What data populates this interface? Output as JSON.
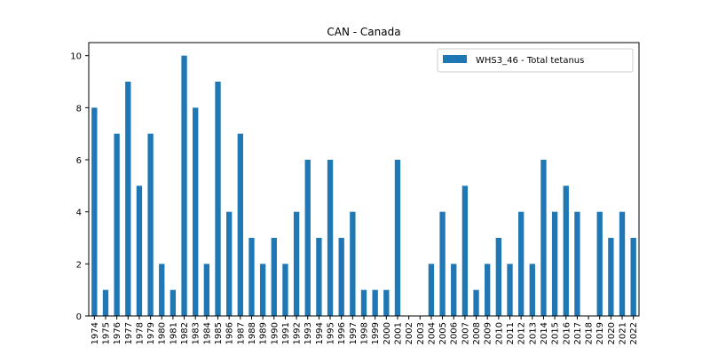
{
  "chart_data": {
    "type": "bar",
    "title": "CAN - Canada",
    "xlabel": "",
    "ylabel": "",
    "ylim": [
      0,
      10.5
    ],
    "yticks": [
      0,
      2,
      4,
      6,
      8,
      10
    ],
    "legend_position": "top-right",
    "grid": false,
    "categories": [
      "1974",
      "1975",
      "1976",
      "1977",
      "1978",
      "1979",
      "1980",
      "1981",
      "1982",
      "1983",
      "1984",
      "1985",
      "1986",
      "1987",
      "1988",
      "1989",
      "1990",
      "1991",
      "1992",
      "1993",
      "1994",
      "1995",
      "1996",
      "1997",
      "1998",
      "1999",
      "2000",
      "2001",
      "2002",
      "2003",
      "2004",
      "2005",
      "2006",
      "2007",
      "2008",
      "2009",
      "2010",
      "2011",
      "2012",
      "2013",
      "2014",
      "2015",
      "2016",
      "2017",
      "2018",
      "2019",
      "2020",
      "2021",
      "2022"
    ],
    "series": [
      {
        "name": "WHS3_46 - Total tetanus",
        "color": "#1f77b4",
        "values": [
          8,
          1,
          7,
          9,
          5,
          7,
          2,
          1,
          10,
          8,
          2,
          9,
          4,
          7,
          3,
          2,
          3,
          2,
          4,
          6,
          3,
          6,
          3,
          4,
          1,
          1,
          1,
          6,
          0,
          0,
          2,
          4,
          2,
          5,
          1,
          2,
          3,
          2,
          4,
          2,
          6,
          4,
          5,
          4,
          0,
          4,
          3,
          4,
          3
        ]
      }
    ]
  }
}
